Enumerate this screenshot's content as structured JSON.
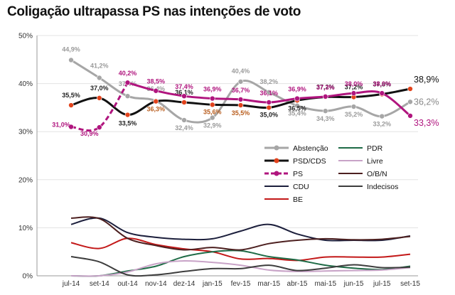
{
  "title": "Coligação ultrapassa PS nas intenções de voto",
  "chart_data": {
    "type": "line",
    "title": "Coligação ultrapassa PS nas intenções de voto",
    "xlabel": "",
    "ylabel": "",
    "ylim": [
      0,
      50
    ],
    "yticks": [
      "0%",
      "10%",
      "20%",
      "30%",
      "40%",
      "50%"
    ],
    "x": [
      "jul-14",
      "set-14",
      "out-14",
      "nov-14",
      "dez-14",
      "jan-15",
      "fev-15",
      "mar-15",
      "abr-15",
      "mai-15",
      "jun-15",
      "jul-15",
      "set-15"
    ],
    "series": [
      {
        "name": "Abstenção",
        "color": "#a6a6a6",
        "marker": "circle",
        "dash": false,
        "values": [
          44.9,
          41.2,
          37.4,
          36.4,
          32.4,
          32.9,
          40.4,
          38.2,
          35.4,
          34.3,
          35.2,
          33.2,
          36.2
        ],
        "labels": [
          "44,9%",
          "41,2%",
          "37,4%",
          "36,4%",
          "32,4%",
          "32,9%",
          "40,4%",
          "38,2%",
          "35,4%",
          "34,3%",
          "35,2%",
          "33,2%",
          "36,2%"
        ]
      },
      {
        "name": "PSD/CDS",
        "color": "#111111",
        "marker": "circle",
        "markerColor": "#e2431c",
        "dash": false,
        "values": [
          35.5,
          37.0,
          33.5,
          36.3,
          36.1,
          35.6,
          35.5,
          35.0,
          36.5,
          37.2,
          37.2,
          37.8,
          38.9
        ],
        "labels": [
          "35,5%",
          "37,0%",
          "33,5%",
          "36,3%",
          "36,1%",
          "35,6%",
          "35,5%",
          "35,0%",
          "36,5%",
          "37,2%",
          "37,2%",
          "37,8%",
          "38,9%"
        ]
      },
      {
        "name": "PS",
        "color": "#b0157e",
        "marker": "circle",
        "dash": true,
        "values": [
          31.0,
          30.9,
          40.2,
          38.5,
          37.4,
          36.9,
          36.7,
          36.1,
          36.9,
          37.3,
          38.0,
          38.0,
          33.3
        ],
        "labels": [
          "31,0%",
          "30,9%",
          "40,2%",
          "38,5%",
          "37,4%",
          "36,9%",
          "36,7%",
          "36,1%",
          "36,9%",
          "37,3%",
          "38,0%",
          "38,0%",
          "33,3%"
        ]
      },
      {
        "name": "CDU",
        "color": "#1c1f3c",
        "marker": "none",
        "dash": false,
        "values": [
          10.7,
          12.0,
          9.0,
          8.0,
          7.6,
          7.7,
          9.3,
          10.7,
          8.7,
          7.4,
          7.4,
          7.4,
          8.3
        ],
        "labels": []
      },
      {
        "name": "BE",
        "color": "#c31818",
        "marker": "none",
        "dash": false,
        "values": [
          6.9,
          5.7,
          7.8,
          6.5,
          5.6,
          5.0,
          3.5,
          3.6,
          3.2,
          3.9,
          3.9,
          3.9,
          4.5
        ],
        "labels": []
      },
      {
        "name": "PDR",
        "color": "#1e6b46",
        "marker": "none",
        "dash": false,
        "values": [
          0,
          0,
          1.0,
          2.0,
          4.0,
          5.0,
          5.2,
          4.0,
          3.3,
          2.2,
          1.6,
          1.3,
          2.0
        ],
        "labels": []
      },
      {
        "name": "Livre",
        "color": "#c8a3c7",
        "marker": "none",
        "dash": false,
        "values": [
          0,
          0,
          0.8,
          2.5,
          3.1,
          2.8,
          2.2,
          1.2,
          0.9,
          1.0,
          1.1,
          1.2,
          1.7
        ],
        "labels": []
      },
      {
        "name": "O/B/N",
        "color": "#4d2020",
        "marker": "none",
        "dash": false,
        "values": [
          12.0,
          11.9,
          7.8,
          6.3,
          5.4,
          5.9,
          5.4,
          6.7,
          7.4,
          7.7,
          7.5,
          7.6,
          8.2
        ],
        "labels": []
      },
      {
        "name": "Indecisos",
        "color": "#3d3d3d",
        "marker": "none",
        "dash": false,
        "values": [
          4.0,
          2.9,
          0.2,
          0.2,
          0.9,
          1.5,
          1.5,
          2.2,
          1.1,
          1.6,
          2.3,
          1.7,
          1.8
        ],
        "labels": []
      }
    ],
    "legend": [
      "Abstenção",
      "PSD/CDS",
      "PS",
      "CDU",
      "BE",
      "PDR",
      "Livre",
      "O/B/N",
      "Indecisos"
    ]
  }
}
